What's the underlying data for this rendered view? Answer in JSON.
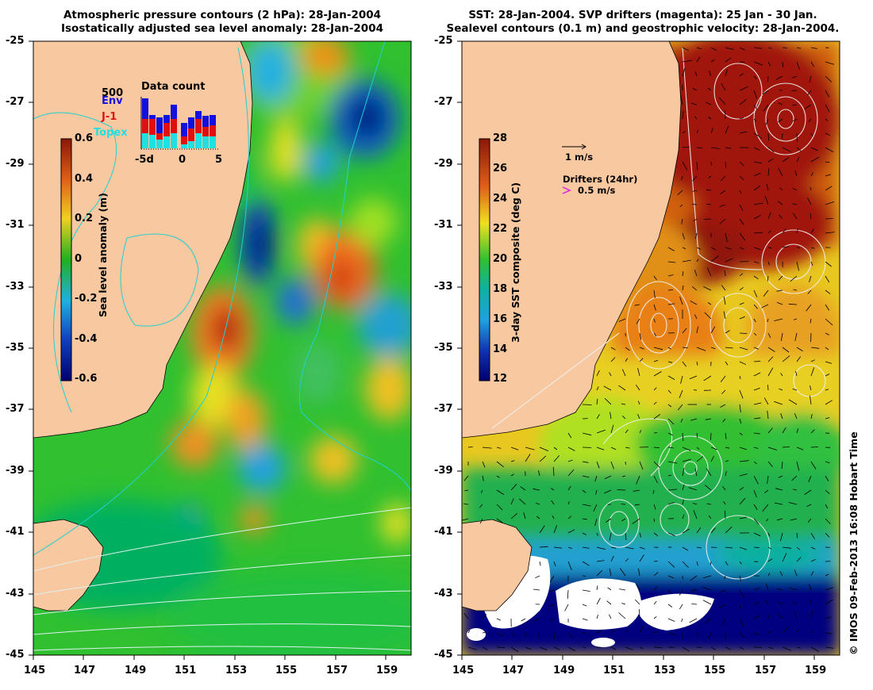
{
  "left_panel": {
    "title_line1": "Atmospheric pressure contours (2 hPa): 28-Jan-2004",
    "title_line2": "Isostatically adjusted sea level anomaly: 28-Jan-2004",
    "colorbar": {
      "label": "Sea level anomaly (m)",
      "ticks": [
        "0.6",
        "0.4",
        "0.2",
        "0",
        "-0.2",
        "-0.4",
        "-0.6"
      ]
    },
    "data_count": {
      "title": "Data count",
      "max_label": "500",
      "x_ticks": [
        "-5d",
        "0",
        "5"
      ],
      "legend": [
        {
          "label": "Env",
          "color": "#1010e0"
        },
        {
          "label": "J-1",
          "color": "#e01010"
        },
        {
          "label": "Topex",
          "color": "#20e0e0"
        }
      ]
    }
  },
  "right_panel": {
    "title_line1": "SST: 28-Jan-2004. SVP drifters (magenta): 25 Jan - 30 Jan.",
    "title_line2": "Sealevel contours (0.1 m) and geostrophic velocity: 28-Jan-2004.",
    "colorbar": {
      "label": "3-day SST composite (deg C)",
      "ticks": [
        "28",
        "26",
        "24",
        "22",
        "20",
        "18",
        "16",
        "14",
        "12"
      ]
    },
    "velocity_legend": "1 m/s",
    "drifters_legend_title": "Drifters (24hr)",
    "drifters_legend_value": "0.5 m/s"
  },
  "axes": {
    "lat_ticks": [
      "-25",
      "-27",
      "-29",
      "-31",
      "-33",
      "-35",
      "-37",
      "-39",
      "-41",
      "-43",
      "-45"
    ],
    "lon_ticks": [
      "145",
      "147",
      "149",
      "151",
      "153",
      "155",
      "157",
      "159"
    ]
  },
  "footer": "© IMOS 09-Feb-2013 16:08 Hobart Time",
  "colors": {
    "land": "#f8c8a0",
    "ocean_deep": "#00a050",
    "sst_warm": "#a01808",
    "sst_cold": "#000080"
  }
}
